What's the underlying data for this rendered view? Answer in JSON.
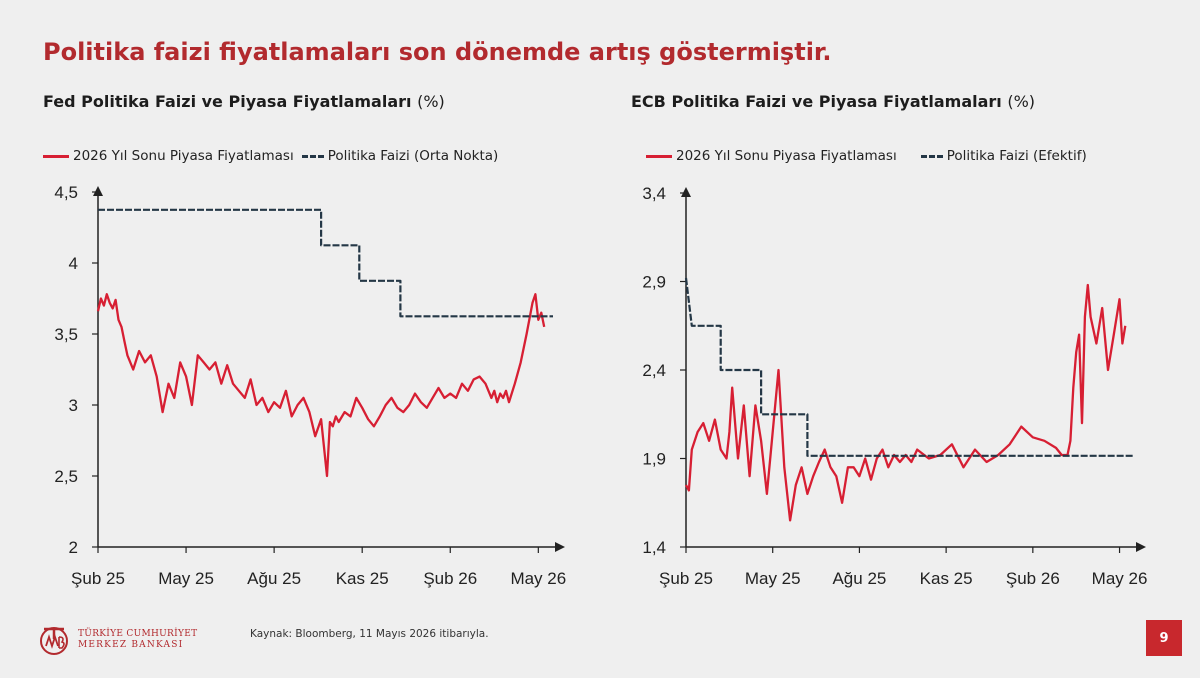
{
  "slide": {
    "title": "Politika faizi fiyatlamaları son dönemde artış göstermiştir.",
    "source": "Kaynak: Bloomberg, 11 Mayıs 2026 itibarıyla.",
    "page_number": "9",
    "logo": {
      "line1": "TÜRKİYE CUMHURİYET",
      "line2": "MERKEZ BANKASI",
      "icon": "tcmb-logo-icon",
      "color": "#b22a2e"
    },
    "colors": {
      "market": "#d71f33",
      "policy": "#243746",
      "accent": "#b22a2e"
    }
  },
  "chart_data": [
    {
      "type": "line",
      "title": "Fed Politika Faizi ve Piyasa Fiyatlamaları",
      "unit": "(%)",
      "xlabel": "",
      "ylabel": "",
      "x_ticks": [
        "Şub 25",
        "May 25",
        "Ağu 25",
        "Kas 25",
        "Şub 26",
        "May 26"
      ],
      "y_ticks": [
        "2",
        "2,5",
        "3",
        "3,5",
        "4",
        "4,5"
      ],
      "ylim": [
        2,
        4.5
      ],
      "xlim": [
        0,
        15.5
      ],
      "grid": false,
      "legend_position": "top",
      "series": [
        {
          "name": "2026 Yıl Sonu Piyasa Fiyatlaması",
          "style": "solid",
          "color": "#d71f33",
          "x": [
            0,
            0.1,
            0.2,
            0.3,
            0.4,
            0.5,
            0.6,
            0.7,
            0.8,
            0.9,
            1.0,
            1.2,
            1.4,
            1.6,
            1.8,
            2.0,
            2.2,
            2.4,
            2.6,
            2.8,
            3.0,
            3.2,
            3.4,
            3.6,
            3.8,
            4.0,
            4.2,
            4.4,
            4.6,
            4.8,
            5.0,
            5.2,
            5.4,
            5.6,
            5.8,
            6.0,
            6.2,
            6.4,
            6.6,
            6.8,
            7.0,
            7.2,
            7.4,
            7.6,
            7.8,
            7.9,
            8.0,
            8.1,
            8.2,
            8.4,
            8.6,
            8.8,
            9.0,
            9.2,
            9.4,
            9.6,
            9.8,
            10.0,
            10.2,
            10.4,
            10.6,
            10.8,
            11.0,
            11.2,
            11.4,
            11.6,
            11.8,
            12.0,
            12.2,
            12.4,
            12.6,
            12.8,
            13.0,
            13.2,
            13.4,
            13.5,
            13.6,
            13.7,
            13.8,
            13.9,
            14.0,
            14.2,
            14.4,
            14.6,
            14.8,
            14.9,
            15.0,
            15.1,
            15.2
          ],
          "y": [
            3.66,
            3.75,
            3.7,
            3.78,
            3.72,
            3.68,
            3.74,
            3.6,
            3.55,
            3.45,
            3.35,
            3.25,
            3.38,
            3.3,
            3.35,
            3.2,
            2.95,
            3.15,
            3.05,
            3.3,
            3.2,
            3.0,
            3.35,
            3.3,
            3.25,
            3.3,
            3.15,
            3.28,
            3.15,
            3.1,
            3.05,
            3.18,
            3.0,
            3.05,
            2.95,
            3.02,
            2.98,
            3.1,
            2.92,
            3.0,
            3.05,
            2.95,
            2.78,
            2.9,
            2.5,
            2.88,
            2.85,
            2.92,
            2.88,
            2.95,
            2.92,
            3.05,
            2.98,
            2.9,
            2.85,
            2.92,
            3.0,
            3.05,
            2.98,
            2.95,
            3.0,
            3.08,
            3.02,
            2.98,
            3.05,
            3.12,
            3.05,
            3.08,
            3.05,
            3.15,
            3.1,
            3.18,
            3.2,
            3.15,
            3.05,
            3.1,
            3.02,
            3.08,
            3.05,
            3.1,
            3.02,
            3.15,
            3.3,
            3.5,
            3.72,
            3.78,
            3.6,
            3.65,
            3.55
          ]
        },
        {
          "name": "Politika Faizi (Orta Nokta)",
          "style": "dashed",
          "color": "#243746",
          "x": [
            0,
            7.6,
            7.6,
            8.9,
            8.9,
            10.3,
            10.3,
            15.5
          ],
          "y": [
            4.375,
            4.375,
            4.125,
            4.125,
            3.875,
            3.875,
            3.625,
            3.625
          ]
        }
      ]
    },
    {
      "type": "line",
      "title": "ECB Politika Faizi ve Piyasa Fiyatlamaları",
      "unit": "(%)",
      "xlabel": "",
      "ylabel": "",
      "x_ticks": [
        "Şub 25",
        "May 25",
        "Ağu 25",
        "Kas 25",
        "Şub 26",
        "May 26"
      ],
      "y_ticks": [
        "1,4",
        "1,9",
        "2,4",
        "2,9",
        "3,4"
      ],
      "ylim": [
        1.4,
        3.4
      ],
      "xlim": [
        0,
        15.5
      ],
      "grid": false,
      "legend_position": "top",
      "series": [
        {
          "name": "2026 Yıl Sonu Piyasa Fiyatlaması",
          "style": "solid",
          "color": "#d71f33",
          "x": [
            0,
            0.1,
            0.2,
            0.4,
            0.6,
            0.8,
            1.0,
            1.2,
            1.4,
            1.5,
            1.6,
            1.8,
            2.0,
            2.2,
            2.4,
            2.6,
            2.8,
            3.0,
            3.2,
            3.4,
            3.6,
            3.8,
            4.0,
            4.2,
            4.4,
            4.6,
            4.8,
            5.0,
            5.2,
            5.4,
            5.6,
            5.8,
            6.0,
            6.2,
            6.4,
            6.6,
            6.8,
            7.0,
            7.2,
            7.4,
            7.6,
            7.8,
            8.0,
            8.4,
            8.8,
            9.2,
            9.6,
            10.0,
            10.4,
            10.8,
            11.2,
            11.6,
            12.0,
            12.4,
            12.8,
            13.0,
            13.2,
            13.3,
            13.4,
            13.5,
            13.6,
            13.7,
            13.8,
            13.9,
            14.0,
            14.2,
            14.4,
            14.6,
            14.8,
            15.0,
            15.1,
            15.2
          ],
          "y": [
            1.75,
            1.72,
            1.95,
            2.05,
            2.1,
            2.0,
            2.12,
            1.95,
            1.9,
            2.05,
            2.3,
            1.9,
            2.2,
            1.8,
            2.2,
            2.0,
            1.7,
            2.05,
            2.4,
            1.85,
            1.55,
            1.75,
            1.85,
            1.7,
            1.8,
            1.88,
            1.95,
            1.85,
            1.8,
            1.65,
            1.85,
            1.85,
            1.8,
            1.9,
            1.78,
            1.9,
            1.95,
            1.85,
            1.92,
            1.88,
            1.92,
            1.88,
            1.95,
            1.9,
            1.92,
            1.98,
            1.85,
            1.95,
            1.88,
            1.92,
            1.98,
            2.08,
            2.02,
            2.0,
            1.96,
            1.92,
            1.92,
            2.0,
            2.3,
            2.5,
            2.6,
            2.1,
            2.7,
            2.88,
            2.7,
            2.55,
            2.75,
            2.4,
            2.6,
            2.8,
            2.55,
            2.65
          ]
        },
        {
          "name": "Politika Faizi (Efektif)",
          "style": "dashed",
          "color": "#243746",
          "x": [
            0,
            0.2,
            0.2,
            1.2,
            1.2,
            2.6,
            2.6,
            4.2,
            4.2,
            15.5
          ],
          "y": [
            2.92,
            2.65,
            2.65,
            2.65,
            2.4,
            2.4,
            2.15,
            2.15,
            1.915,
            1.915
          ]
        }
      ]
    }
  ]
}
